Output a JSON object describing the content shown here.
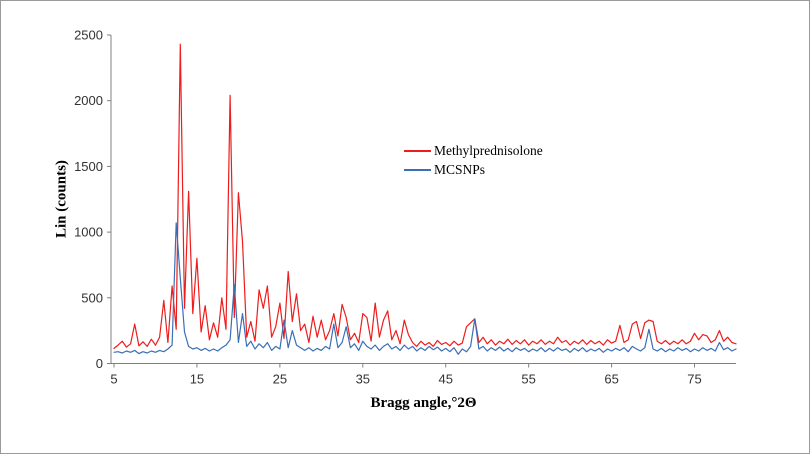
{
  "frame": {
    "background": "#ffffff",
    "border_color": "#9a9a9a",
    "axis_line_color": "#808080",
    "tick_label_color": "#333333"
  },
  "chart_data": {
    "type": "line",
    "title": "",
    "xlabel": "Bragg angle,°2Θ",
    "ylabel": "Lin (counts)",
    "xlim": [
      5,
      80
    ],
    "ylim": [
      0,
      2500
    ],
    "x_ticks": [
      5,
      15,
      25,
      35,
      45,
      55,
      65,
      75
    ],
    "y_ticks": [
      0,
      500,
      1000,
      1500,
      2000,
      2500
    ],
    "grid": false,
    "legend_position": "center-right-upper",
    "x_start": 5,
    "x_step": 0.5,
    "series": [
      {
        "name": "Methylprednisolone",
        "color": "#ee1c1c",
        "values": [
          115,
          140,
          170,
          125,
          150,
          300,
          135,
          165,
          130,
          185,
          140,
          200,
          480,
          160,
          590,
          260,
          2430,
          420,
          1310,
          380,
          800,
          240,
          440,
          180,
          310,
          200,
          500,
          260,
          2040,
          350,
          1300,
          930,
          200,
          320,
          170,
          560,
          420,
          590,
          200,
          280,
          460,
          190,
          700,
          320,
          530,
          250,
          300,
          160,
          360,
          200,
          330,
          180,
          250,
          380,
          210,
          450,
          350,
          180,
          230,
          160,
          380,
          350,
          170,
          460,
          200,
          330,
          400,
          180,
          250,
          150,
          330,
          220,
          160,
          130,
          170,
          140,
          160,
          130,
          175,
          145,
          160,
          135,
          170,
          140,
          155,
          280,
          310,
          340,
          160,
          200,
          150,
          180,
          140,
          170,
          150,
          185,
          145,
          175,
          150,
          180,
          140,
          170,
          150,
          180,
          145,
          170,
          150,
          200,
          160,
          175,
          140,
          170,
          150,
          180,
          145,
          175,
          150,
          170,
          140,
          180,
          155,
          170,
          290,
          160,
          180,
          300,
          320,
          190,
          310,
          330,
          320,
          170,
          150,
          175,
          145,
          170,
          150,
          180,
          150,
          170,
          230,
          180,
          220,
          210,
          160,
          180,
          250,
          170,
          200,
          160,
          150
        ]
      },
      {
        "name": "MCSNPs",
        "color": "#3a6eb5",
        "values": [
          85,
          90,
          80,
          95,
          85,
          100,
          75,
          90,
          80,
          95,
          85,
          100,
          90,
          110,
          140,
          1070,
          650,
          240,
          130,
          110,
          120,
          100,
          115,
          95,
          110,
          95,
          120,
          140,
          180,
          600,
          160,
          380,
          130,
          170,
          110,
          150,
          120,
          160,
          100,
          130,
          110,
          330,
          120,
          250,
          140,
          120,
          100,
          120,
          95,
          115,
          100,
          130,
          110,
          300,
          120,
          160,
          280,
          120,
          150,
          100,
          170,
          130,
          110,
          140,
          100,
          130,
          150,
          110,
          130,
          100,
          140,
          110,
          130,
          95,
          120,
          100,
          130,
          105,
          125,
          95,
          115,
          90,
          120,
          70,
          110,
          90,
          130,
          340,
          110,
          130,
          95,
          120,
          100,
          125,
          95,
          115,
          90,
          120,
          100,
          115,
          90,
          110,
          95,
          120,
          90,
          115,
          95,
          120,
          100,
          110,
          85,
          115,
          95,
          120,
          90,
          110,
          95,
          115,
          85,
          110,
          95,
          115,
          100,
          120,
          90,
          130,
          110,
          95,
          120,
          260,
          110,
          95,
          115,
          90,
          110,
          95,
          120,
          100,
          115,
          90,
          110,
          95,
          120,
          100,
          115,
          95,
          160,
          105,
          120,
          95,
          110
        ]
      }
    ]
  }
}
